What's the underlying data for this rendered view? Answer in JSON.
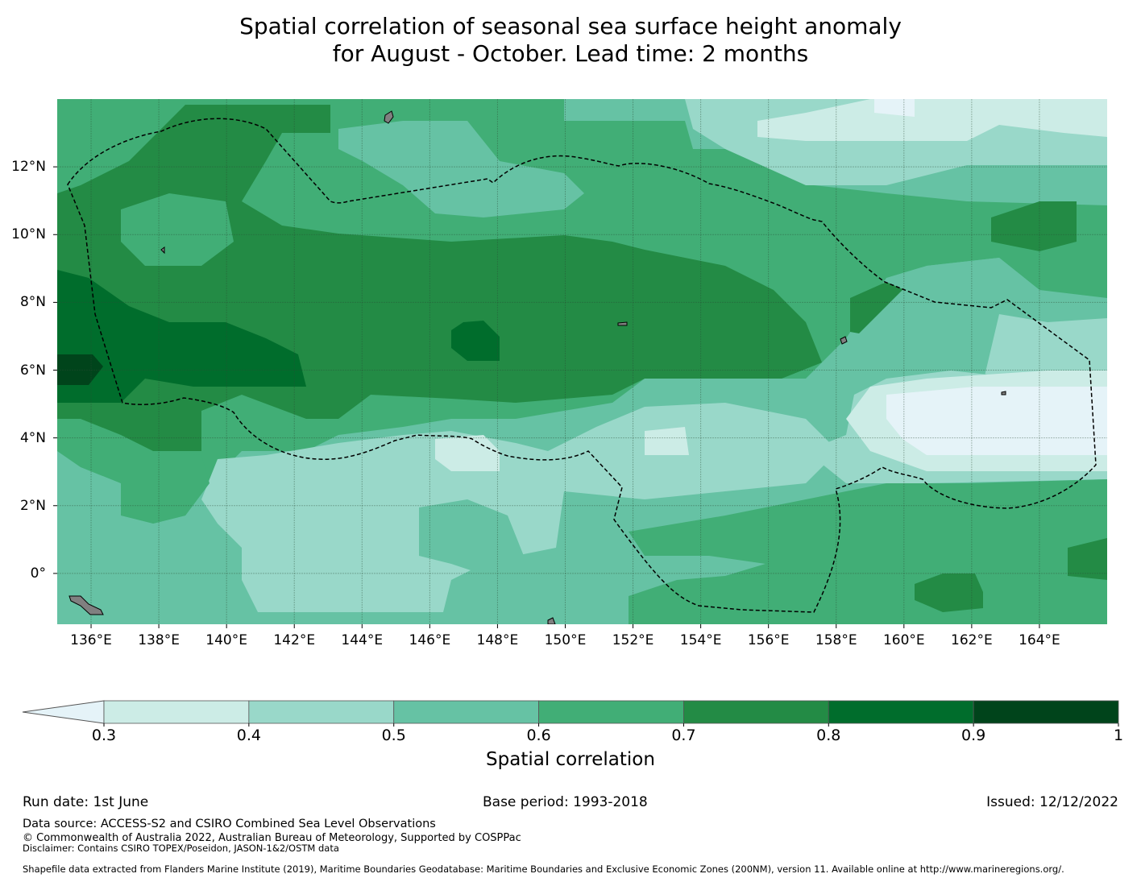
{
  "title": {
    "line1": "Spatial correlation of seasonal sea surface height anomaly",
    "line2": "for August - October. Lead time: 2 months"
  },
  "map": {
    "lon_range": [
      135,
      166
    ],
    "lat_range": [
      -1.5,
      14
    ],
    "x_ticks": [
      "136°E",
      "138°E",
      "140°E",
      "142°E",
      "144°E",
      "146°E",
      "148°E",
      "150°E",
      "152°E",
      "154°E",
      "156°E",
      "158°E",
      "160°E",
      "162°E",
      "164°E"
    ],
    "x_tick_values": [
      136,
      138,
      140,
      142,
      144,
      146,
      148,
      150,
      152,
      154,
      156,
      158,
      160,
      162,
      164
    ],
    "y_ticks": [
      "12°N",
      "10°N",
      "8°N",
      "6°N",
      "4°N",
      "2°N",
      "0°"
    ],
    "y_tick_values": [
      12,
      10,
      8,
      6,
      4,
      2,
      0
    ],
    "grid": true,
    "land_color": "#808080",
    "eez_boundary": "dashed"
  },
  "colorbar": {
    "label": "Spatial correlation",
    "bounds": [
      "0.3",
      "0.4",
      "0.5",
      "0.6",
      "0.7",
      "0.8",
      "0.9",
      "1"
    ],
    "extend": "min",
    "under_color": "#e5f3f8",
    "colors": [
      "#ccece6",
      "#99d8c9",
      "#66c2a4",
      "#41ae76",
      "#238b45",
      "#006d2c",
      "#00441b"
    ]
  },
  "footer": {
    "run_date": "Run date: 1st June",
    "base_period": "Base period: 1993-2018",
    "issued": "Issued: 12/12/2022",
    "data_source": "Data source: ACCESS-S2 and CSIRO Combined Sea Level Observations",
    "copyright": "© Commonwealth of Australia 2022, Australian Bureau of Meteorology, Supported by COSPPac",
    "disclaimer": "Disclaimer: Contains CSIRO TOPEX/Poseidon, JASON-1&2/OSTM data",
    "shapefile": "Shapefile data extracted from Flanders Marine Institute (2019), Maritime Boundaries Geodatabase: Maritime Boundaries and Exclusive Economic Zones (200NM), version 11. Available online at http://www.marineregions.org/."
  }
}
